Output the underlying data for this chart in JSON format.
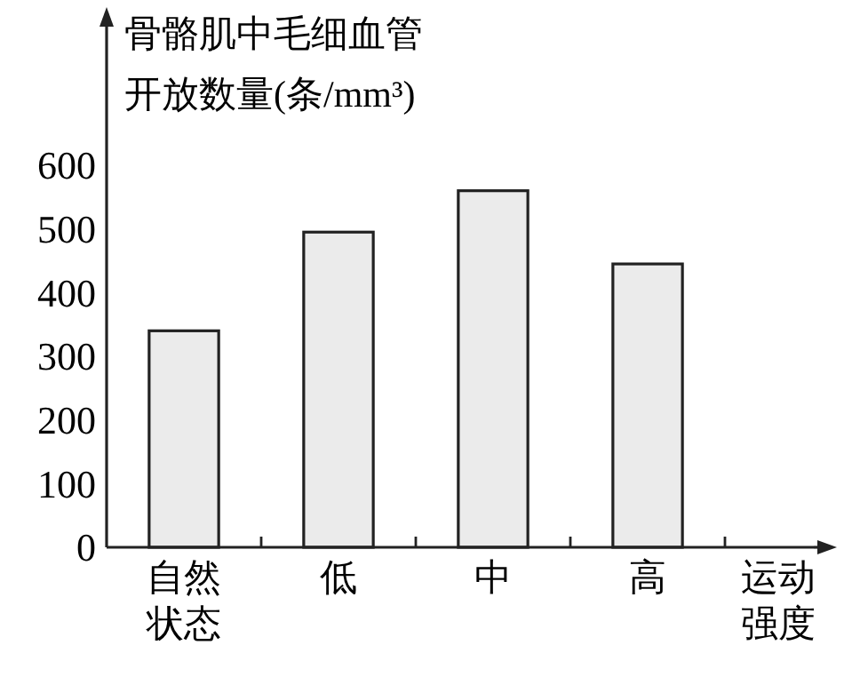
{
  "chart_data": {
    "type": "bar",
    "ylabel": "骨骼肌中毛细血管开放数量(条/mm³)",
    "xlabel": "运动强度",
    "categories": [
      "自然状态",
      "低",
      "中",
      "高"
    ],
    "values": [
      340,
      495,
      560,
      445
    ],
    "color": "#ebebeb",
    "ylim": [
      0,
      840
    ],
    "yticks": [
      0,
      100,
      200,
      300,
      400,
      500,
      600
    ],
    "grid": false
  }
}
